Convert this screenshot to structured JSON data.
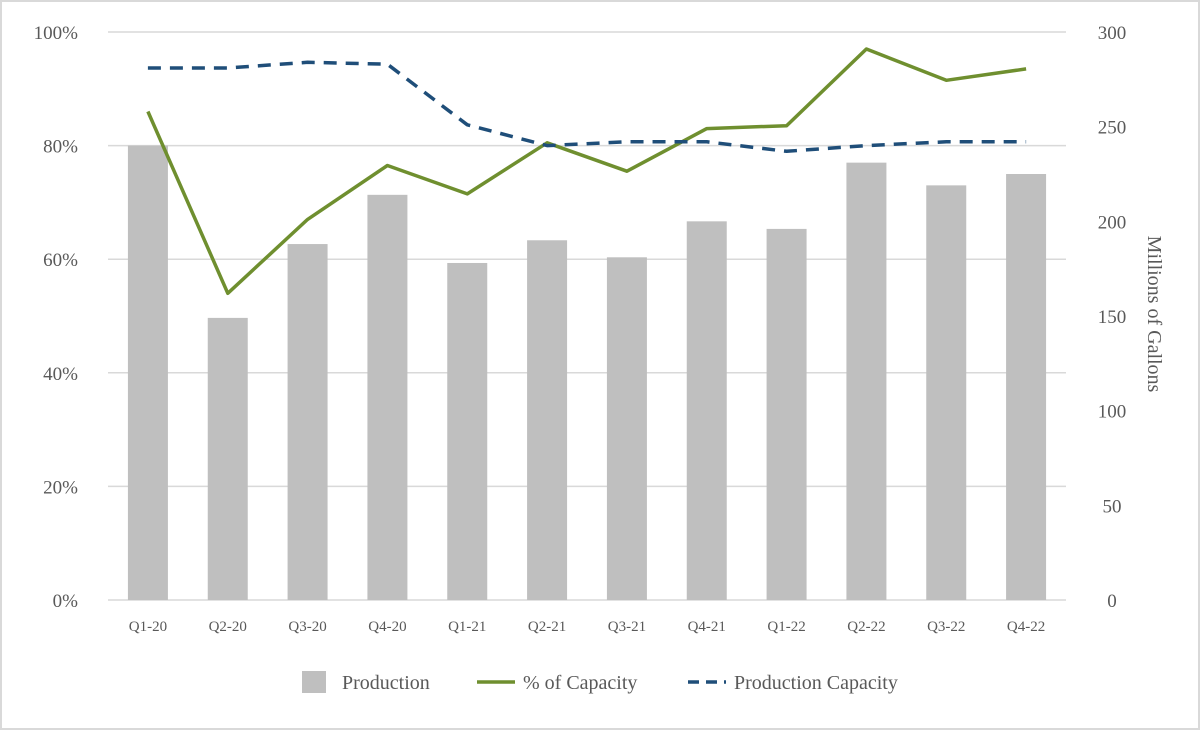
{
  "chart_data": {
    "type": "bar",
    "categories": [
      "Q1-20",
      "Q2-20",
      "Q3-20",
      "Q4-20",
      "Q1-21",
      "Q2-21",
      "Q3-21",
      "Q4-21",
      "Q1-22",
      "Q2-22",
      "Q3-22",
      "Q4-22"
    ],
    "series": [
      {
        "name": "Production",
        "type": "bar",
        "axis": "right",
        "color": "#bfbfbf",
        "values": [
          240,
          149,
          188,
          214,
          178,
          190,
          181,
          200,
          196,
          231,
          219,
          225
        ]
      },
      {
        "name": "% of Capacity",
        "type": "line",
        "axis": "left",
        "color": "#6f8f2f",
        "style": "solid",
        "values": [
          86,
          54,
          67,
          76.5,
          71.5,
          80.5,
          75.5,
          83,
          83.5,
          97,
          91.5,
          93.5
        ]
      },
      {
        "name": "Production Capacity",
        "type": "line",
        "axis": "right",
        "color": "#1f4e79",
        "style": "dashed",
        "values": [
          281,
          281,
          284,
          283,
          251,
          240,
          242,
          242,
          237,
          240,
          242,
          242
        ]
      }
    ],
    "left_axis": {
      "ticks": [
        "0%",
        "20%",
        "40%",
        "60%",
        "80%",
        "100%"
      ],
      "ylim": [
        0,
        100
      ]
    },
    "right_axis": {
      "ticks": [
        "0",
        "50",
        "100",
        "150",
        "200",
        "250",
        "300"
      ],
      "ylim": [
        0,
        300
      ],
      "label": "Millions of Gallons"
    },
    "grid": true,
    "legend_position": "bottom"
  }
}
